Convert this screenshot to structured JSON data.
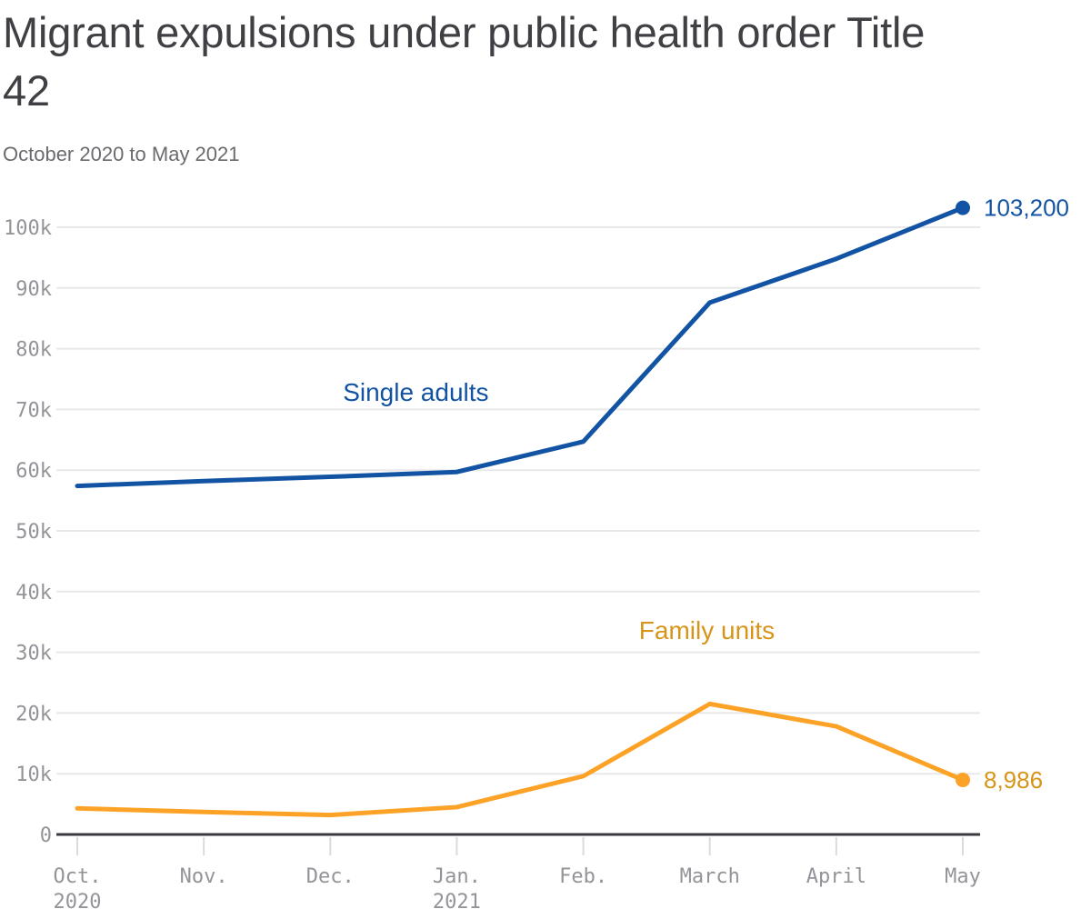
{
  "chart_data": {
    "type": "line",
    "title": "Migrant expulsions under public health order Title 42",
    "subtitle": "October 2020 to May 2021",
    "x_ticks": [
      {
        "label": "Oct.",
        "sub": "2020"
      },
      {
        "label": "Nov."
      },
      {
        "label": "Dec."
      },
      {
        "label": "Jan.",
        "sub": "2021"
      },
      {
        "label": "Feb."
      },
      {
        "label": "March"
      },
      {
        "label": "April"
      },
      {
        "label": "May"
      }
    ],
    "y_ticks": [
      {
        "value": 0,
        "label": "0"
      },
      {
        "value": 10000,
        "label": "10k"
      },
      {
        "value": 20000,
        "label": "20k"
      },
      {
        "value": 30000,
        "label": "30k"
      },
      {
        "value": 40000,
        "label": "40k"
      },
      {
        "value": 50000,
        "label": "50k"
      },
      {
        "value": 60000,
        "label": "60k"
      },
      {
        "value": 70000,
        "label": "70k"
      },
      {
        "value": 80000,
        "label": "80k"
      },
      {
        "value": 90000,
        "label": "90k"
      },
      {
        "value": 100000,
        "label": "100k"
      }
    ],
    "ylim": [
      0,
      100000
    ],
    "grid": "horizontal",
    "legend_position": "inline-labels",
    "series": [
      {
        "name": "Single adults",
        "color": "#1254A3",
        "label_color": "#1254A3",
        "end_label": "103,200",
        "values": [
          57400,
          58200,
          58900,
          59700,
          64700,
          87600,
          94800,
          103200
        ]
      },
      {
        "name": "Family units",
        "color": "#FCA327",
        "label_color": "#D79418",
        "end_label": "8,986",
        "values": [
          4300,
          3700,
          3200,
          4500,
          9600,
          21500,
          17800,
          8986
        ]
      }
    ],
    "annotations": [
      {
        "text": "Single adults",
        "x_index": 2.1,
        "value": 71400,
        "color": "#1254A3"
      },
      {
        "text": "Family units",
        "x_index": 4.44,
        "value": 32200,
        "color": "#D79418"
      }
    ],
    "colors": {
      "grid": "#E8E8EA",
      "axis_line": "#3A3A3E",
      "tick": "#DBDBDD",
      "axis_text": "#939399"
    }
  }
}
